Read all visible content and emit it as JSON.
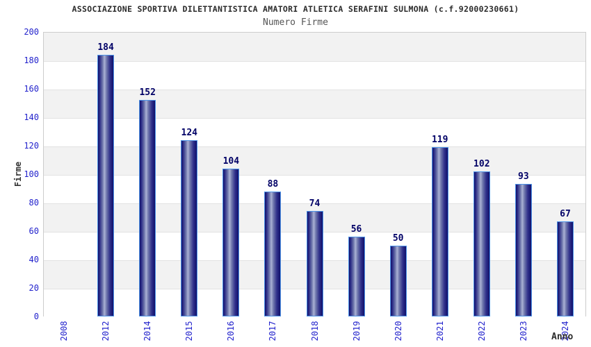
{
  "chart_data": {
    "type": "bar",
    "title": "ASSOCIAZIONE SPORTIVA DILETTANTISTICA AMATORI ATLETICA SERAFINI SULMONA (c.f.92000230661)",
    "subtitle": "Numero Firme",
    "xlabel": "Anno",
    "ylabel": "Firme",
    "categories": [
      "2008",
      "2012",
      "2014",
      "2015",
      "2016",
      "2017",
      "2018",
      "2019",
      "2020",
      "2021",
      "2022",
      "2023",
      "2024"
    ],
    "values": [
      null,
      184,
      152,
      124,
      104,
      88,
      74,
      56,
      50,
      119,
      102,
      93,
      67
    ],
    "ylim": [
      0,
      200
    ],
    "ytick_step": 20,
    "grid": true,
    "legend": false,
    "band_fill_alternating": true
  },
  "colors": {
    "bar_dark": "#10106b",
    "bar_light": "#aab1d4",
    "bar_border": "#4d94e8",
    "axis_tick_label": "#2222cc",
    "value_label": "#000066",
    "title": "#2b2b2b",
    "subtitle": "#555555",
    "band": "#f2f2f2",
    "gridline": "#e2e2e2",
    "plot_border": "#cccccc",
    "background": "#ffffff"
  }
}
